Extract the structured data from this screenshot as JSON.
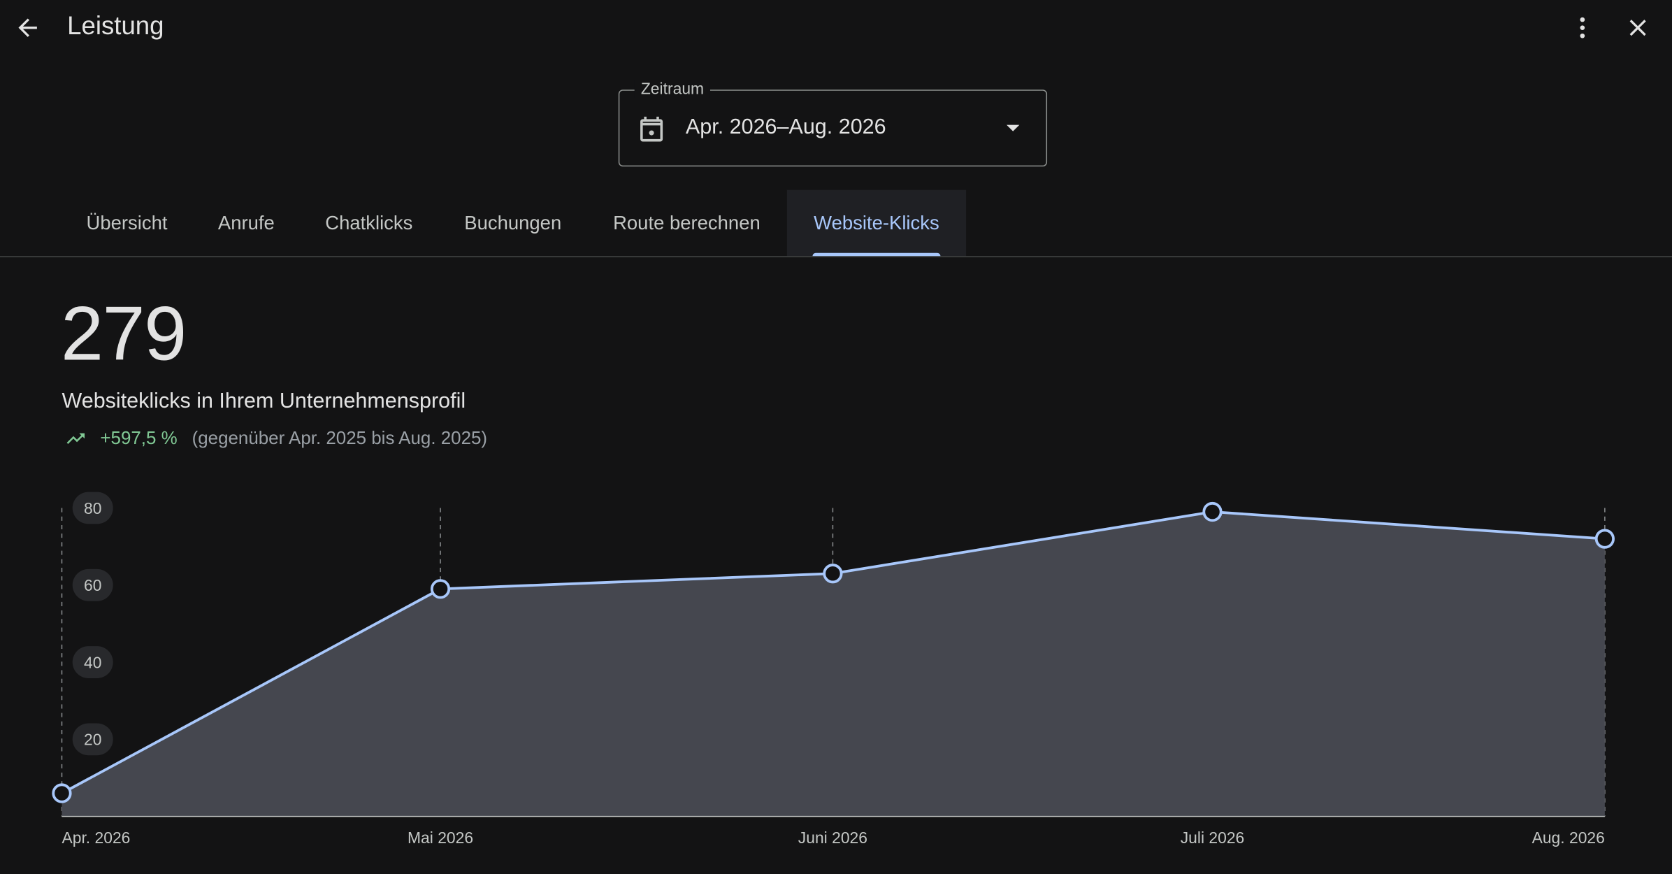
{
  "header": {
    "title": "Leistung",
    "back_icon": "arrow-back-icon",
    "more_icon": "more-vert-icon",
    "close_icon": "close-icon"
  },
  "date_range": {
    "label": "Zeitraum",
    "value": "Apr. 2026–Aug. 2026",
    "icon": "calendar-icon"
  },
  "tabs": [
    {
      "label": "Übersicht",
      "active": false
    },
    {
      "label": "Anrufe",
      "active": false
    },
    {
      "label": "Chatklicks",
      "active": false
    },
    {
      "label": "Buchungen",
      "active": false
    },
    {
      "label": "Route berechnen",
      "active": false
    },
    {
      "label": "Website-Klicks",
      "active": true
    }
  ],
  "summary": {
    "total": "279",
    "caption": "Websiteklicks in Ihrem Unternehmensprofil",
    "trend_value": "+597,5 %",
    "trend_compare": "(gegenüber Apr. 2025 bis Aug. 2025)"
  },
  "colors": {
    "background": "#131314",
    "accent": "#a8c7fa",
    "area_fill": "#45474f",
    "trend_positive": "#81c995"
  },
  "chart_data": {
    "type": "area",
    "x": [
      "Apr. 2026",
      "Mai 2026",
      "Juni 2026",
      "Juli 2026",
      "Aug. 2026"
    ],
    "values": [
      6,
      59,
      63,
      79,
      72
    ],
    "yticks": [
      20,
      40,
      60,
      80
    ],
    "ylim": [
      0,
      80
    ],
    "grid": "vertical dashed",
    "legend": "none"
  }
}
